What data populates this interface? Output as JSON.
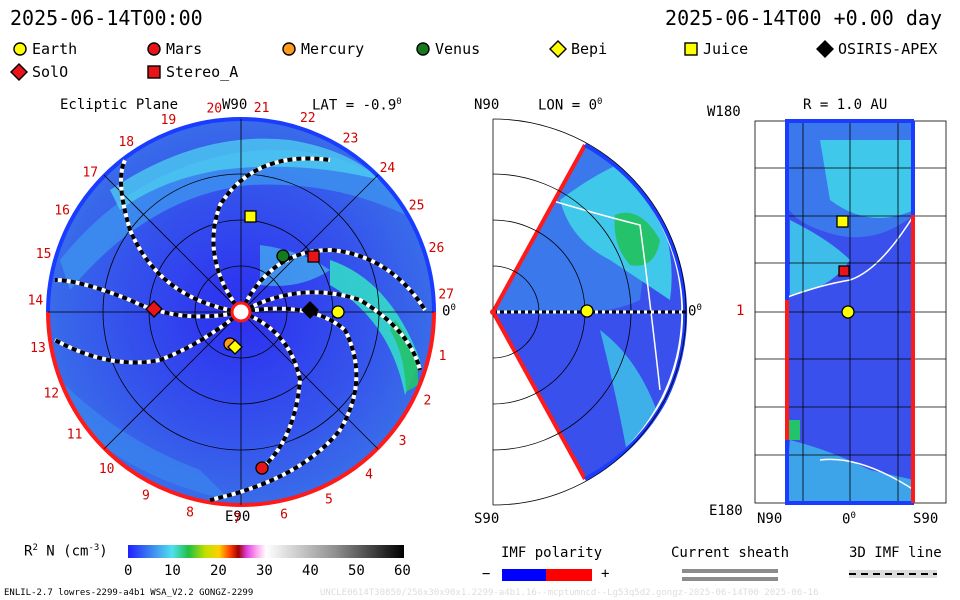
{
  "header": {
    "time_left": "2025-06-14T00:00",
    "time_right": "2025-06-14T00 +0.00 day"
  },
  "legend": [
    {
      "name": "Earth",
      "shape": "circle",
      "color": "#ffff00"
    },
    {
      "name": "Mars",
      "shape": "circle",
      "color": "#e8141a"
    },
    {
      "name": "Mercury",
      "shape": "circle",
      "color": "#ff9a1e"
    },
    {
      "name": "Venus",
      "shape": "circle",
      "color": "#157a1f"
    },
    {
      "name": "Bepi",
      "shape": "diamond",
      "color": "#ffff00"
    },
    {
      "name": "Juice",
      "shape": "square",
      "color": "#ffff00"
    },
    {
      "name": "OSIRIS-APEX",
      "shape": "diamond",
      "color": "#000000"
    },
    {
      "name": "SolO",
      "shape": "diamond",
      "color": "#e8141a"
    },
    {
      "name": "Stereo_A",
      "shape": "square",
      "color": "#e8141a"
    }
  ],
  "panel_ecliptic": {
    "title": "Ecliptic Plane",
    "top_label": "W90",
    "lat_label": "LAT = -0.9",
    "bottom_label": "E90",
    "zero_label": "0",
    "sector_numbers": [
      "1",
      "2",
      "3",
      "4",
      "5",
      "6",
      "7",
      "8",
      "9",
      "10",
      "11",
      "12",
      "13",
      "14",
      "15",
      "16",
      "17",
      "18",
      "19",
      "20",
      "21",
      "22",
      "23",
      "24",
      "25",
      "26",
      "27"
    ]
  },
  "panel_meridional": {
    "top_left": "N90",
    "lon_label": "LON = 0",
    "bottom_left": "S90",
    "zero_label": "0"
  },
  "panel_radial": {
    "r_label": "R = 1.0 AU",
    "top_left": "W180",
    "mid_left": "1",
    "bottom_left": "E180",
    "x_left": "N90",
    "x_mid": "0",
    "x_right": "S90"
  },
  "colorbar": {
    "label": "R",
    "label_tail": " N (cm",
    "label_end": ")",
    "ticks": [
      "0",
      "10",
      "20",
      "30",
      "40",
      "50",
      "60"
    ]
  },
  "imf": {
    "title": "IMF polarity",
    "minus": "−",
    "plus": "+",
    "neg_color": "#0000ff",
    "pos_color": "#ff0000"
  },
  "current_sheath": {
    "title": "Current sheath"
  },
  "imf_line": {
    "title": "3D IMF line"
  },
  "footer": {
    "left": "ENLIL-2.7 lowres-2299-a4b1 WSA_V2.2 GONGZ-2299",
    "right": "UNCLE0614T30850/256x30x90x1.2299-a4b1.16--mcptumncd--Lg53q5d2.gongz-2025-06-14T00   2025-06-16"
  }
}
